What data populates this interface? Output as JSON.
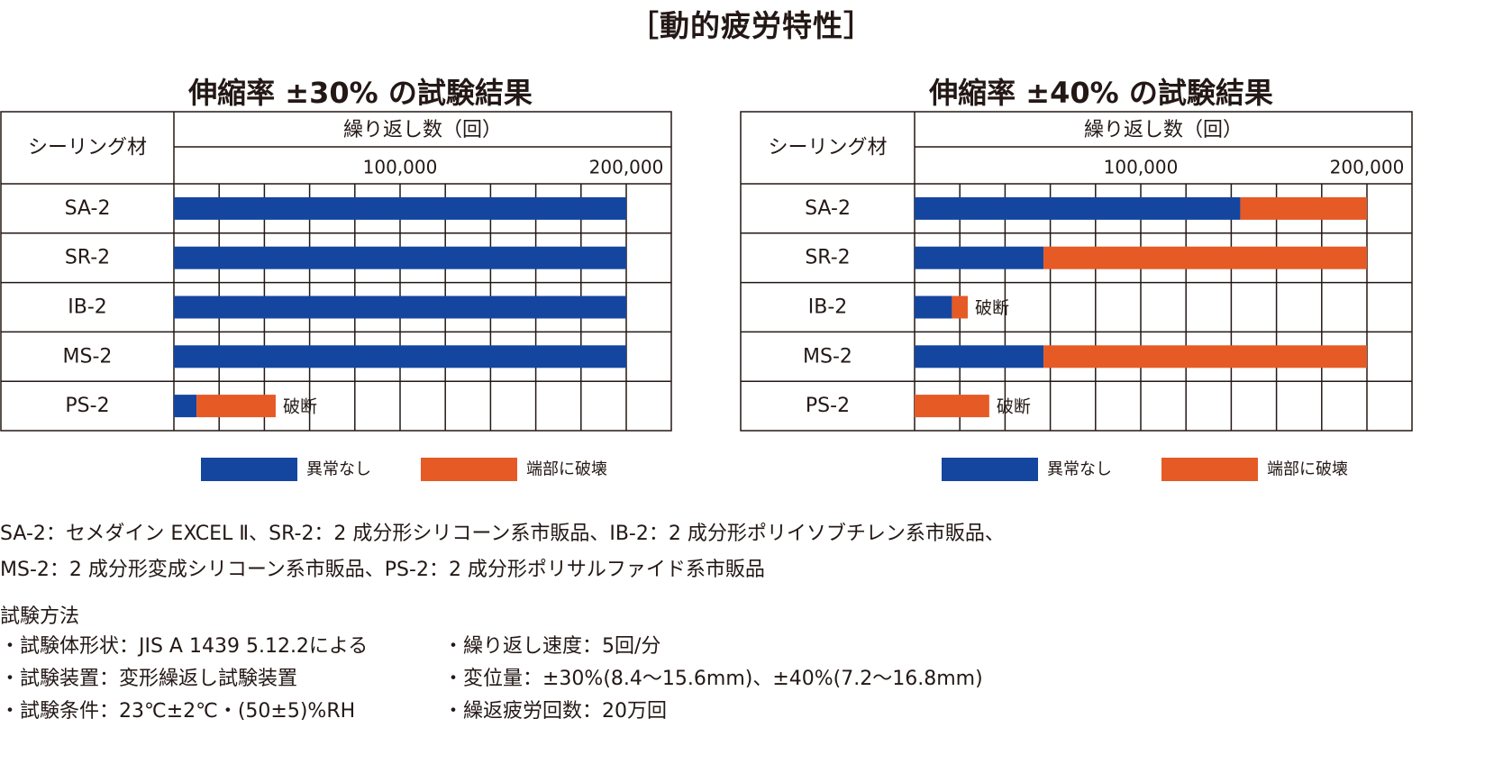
{
  "main_title": "［動的疲労特性］",
  "legend": {
    "normal_label": "異常なし",
    "damage_label": "端部に破壊",
    "colors": {
      "normal": "#1446a0",
      "damage": "#e55a25"
    }
  },
  "chart_data": [
    {
      "type": "bar",
      "stacked": true,
      "orientation": "horizontal",
      "title": "伸縮率 ±30% の試験結果",
      "row_header": "シーリング材",
      "xlabel": "繰り返し数（回）",
      "xlim": [
        0,
        220000
      ],
      "x_tick_labels": [
        "100,000",
        "200,000"
      ],
      "x_ticks": [
        100000,
        200000
      ],
      "grid": true,
      "categories": [
        "SA-2",
        "SR-2",
        "IB-2",
        "MS-2",
        "PS-2"
      ],
      "series": [
        {
          "name": "異常なし",
          "values": [
            200000,
            200000,
            200000,
            200000,
            10000
          ]
        },
        {
          "name": "端部に破壊",
          "values": [
            0,
            0,
            0,
            0,
            35000
          ]
        }
      ],
      "annotations": [
        "",
        "",
        "",
        "",
        "破断"
      ]
    },
    {
      "type": "bar",
      "stacked": true,
      "orientation": "horizontal",
      "title": "伸縮率 ±40% の試験結果",
      "row_header": "シーリング材",
      "xlabel": "繰り返し数（回）",
      "xlim": [
        0,
        220000
      ],
      "x_tick_labels": [
        "100,000",
        "200,000"
      ],
      "x_ticks": [
        100000,
        200000
      ],
      "grid": true,
      "categories": [
        "SA-2",
        "SR-2",
        "IB-2",
        "MS-2",
        "PS-2"
      ],
      "series": [
        {
          "name": "異常なし",
          "values": [
            144000,
            57000,
            16500,
            57000,
            0
          ]
        },
        {
          "name": "端部に破壊",
          "values": [
            56000,
            143000,
            7000,
            143000,
            33000
          ]
        }
      ],
      "annotations": [
        "",
        "",
        "破断",
        "",
        "破断"
      ]
    }
  ],
  "notes": {
    "line1": "SA-2：セメダイン EXCEL Ⅱ、SR-2：2 成分形シリコーン系市販品、IB-2：2 成分形ポリイソブチレン系市販品、",
    "line2": "MS-2：2 成分形変成シリコーン系市販品、PS-2：2 成分形ポリサルファイド系市販品"
  },
  "method": {
    "heading": "試験方法",
    "left": [
      "・試験体形状：JIS A 1439 5.12.2による",
      "・試験装置：変形繰返し試験装置",
      "・試験条件：23℃±2℃・(50±5)%RH"
    ],
    "right": [
      "・繰り返し速度：5回/分",
      "・変位量：±30%(8.4～15.6mm)、±40%(7.2～16.8mm)",
      "・繰返疲労回数：20万回"
    ]
  }
}
